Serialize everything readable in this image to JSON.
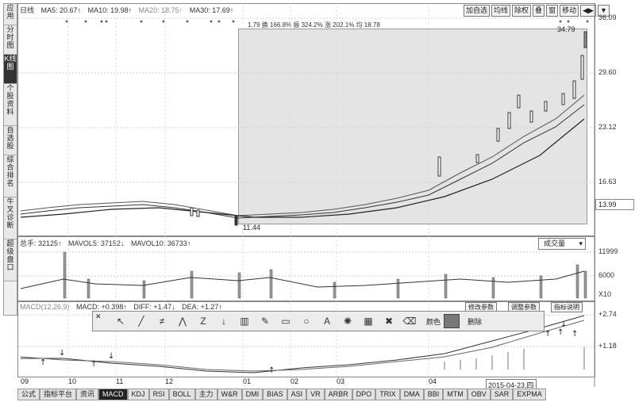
{
  "sidebar": {
    "tabs": [
      "应用",
      "分时图",
      "K线图",
      "个股资料",
      "自选股",
      "综合排名",
      "牛叉诊断",
      "超级盘口"
    ],
    "active_index": 2
  },
  "kline": {
    "header": [
      "日线",
      "MA5: 20.67↑",
      "MA10: 19.98↑",
      "MA20: 18.75↑",
      "MA30: 17.69↑"
    ],
    "overlay_text": "1.79 换 166.8% 振 324.2% 涨 202.1% 均 18.78",
    "peak_label": "34.79",
    "low_label": "11.44",
    "axis": [
      "36.09",
      "29.60",
      "23.12",
      "16.63"
    ],
    "axis_current": "13.99",
    "buttons": [
      "加自选",
      "均线",
      "除权",
      "叠",
      "窗",
      "移动",
      "◀▶",
      "▼"
    ]
  },
  "volume": {
    "header": [
      "总手: 32125↑",
      "MAVOL5: 37152↓",
      "MAVOL10: 36733↑"
    ],
    "dropdown": "成交量",
    "axis": [
      "11999",
      "6000"
    ],
    "axis_unit": "X10"
  },
  "macd": {
    "header": [
      "MACD(12,26,9)",
      "MACD: +0.398↑",
      "DIFF: +1.47↓",
      "DEA: +1.27↑"
    ],
    "buttons": [
      "修改参数",
      "调整参数",
      "指标说明"
    ],
    "axis": [
      "+2.74",
      "+1.18"
    ]
  },
  "drawing_toolbar": {
    "tools": [
      "pointer",
      "line",
      "multi-line",
      "fork",
      "parallel",
      "arrow-down",
      "bars",
      "pencil",
      "rect",
      "circle",
      "text-A",
      "gear",
      "grid",
      "cross",
      "eraser"
    ],
    "labels": [
      "颜色",
      "删除"
    ],
    "close_glyph": "✕"
  },
  "timeline": [
    "09",
    "10",
    "11",
    "12",
    "01",
    "02",
    "03",
    "04"
  ],
  "date_box": "2015-04-23,四",
  "bottom_tabs": [
    "公式",
    "指标平台",
    "资讯",
    "MACD",
    "KDJ",
    "RSI",
    "BOLL",
    "主力",
    "W&R",
    "DMI",
    "BIAS",
    "ASI",
    "VR",
    "ARBR",
    "DPO",
    "TRIX",
    "DMA",
    "BBI",
    "MTM",
    "OBV",
    "SAR",
    "EXPMA"
  ],
  "bottom_tab_selected": 3
}
